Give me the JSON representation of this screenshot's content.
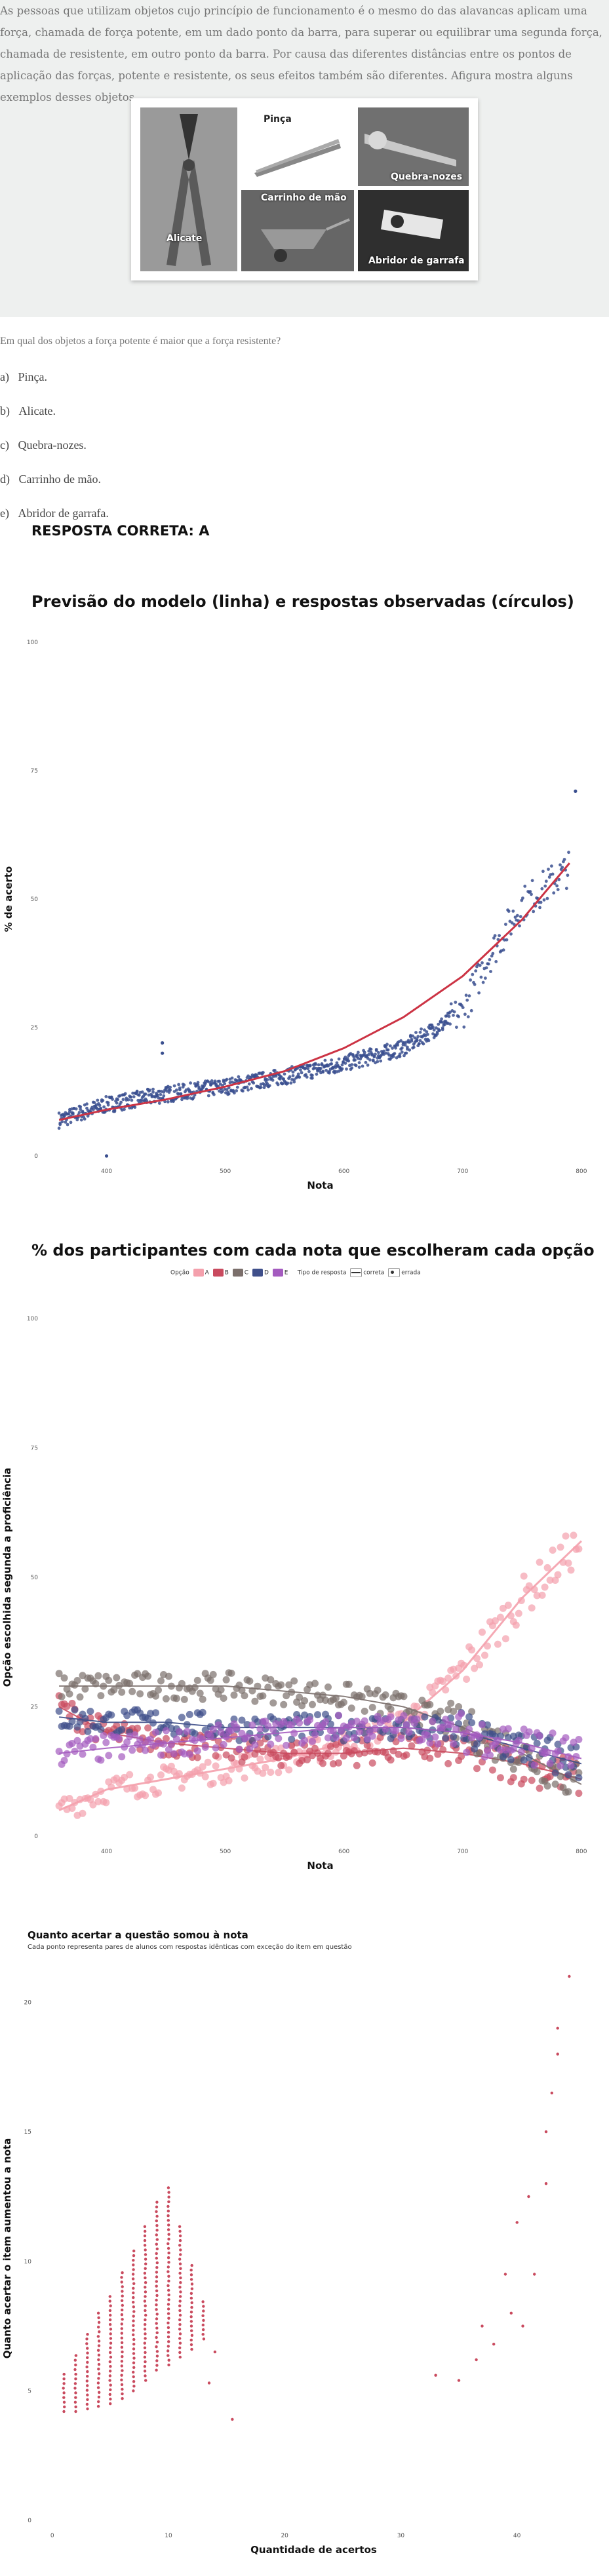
{
  "intro": {
    "text": "As pessoas que utilizam objetos cujo princípio de funcionamento é o mesmo do das alavancas aplicam uma força, chamada de força potente, em um dado ponto da barra, para superar ou equilibrar uma segunda força, chamada de resistente, em outro ponto da barra. Por causa das diferentes distâncias entre os pontos de aplicação das forças, potente e resistente, os seus efeitos também são diferentes. Afigura mostra alguns exemplos desses objetos.",
    "figure": {
      "labels": {
        "alicate": "Alicate",
        "pinca": "Pinça",
        "quebra_nozes": "Quebra-nozes",
        "carrinho": "Carrinho de mão",
        "abridor": "Abridor de garrafa"
      }
    }
  },
  "question": "Em qual dos objetos a força potente é maior que a força resistente?",
  "options": [
    {
      "letter": "a)",
      "text": "Pinça."
    },
    {
      "letter": "b)",
      "text": "Alicate."
    },
    {
      "letter": "c)",
      "text": "Quebra-nozes."
    },
    {
      "letter": "d)",
      "text": "Carrinho de mão."
    },
    {
      "letter": "e)",
      "text": "Abridor de garrafa."
    }
  ],
  "answer": "RESPOSTA CORRETA: A",
  "colors": {
    "model_line": "#cc3344",
    "observed": "#3a4f8f",
    "A": "#f4a0ac",
    "B": "#c94a5e",
    "C": "#7b6f6b",
    "D": "#3f4f8a",
    "E": "#a45bbf"
  },
  "chart_data": [
    {
      "type": "scatter",
      "title": "Previsão do modelo (linha) e respostas observadas (círculos)",
      "xlabel": "Nota",
      "ylabel": "% de acerto",
      "xlim": [
        350,
        810
      ],
      "ylim": [
        0,
        100
      ],
      "xticks": [
        "400",
        "500",
        "600",
        "700",
        "800"
      ],
      "yticks": [
        "0",
        "25",
        "50",
        "75",
        "100"
      ],
      "model_line": {
        "x": [
          360,
          400,
          450,
          500,
          550,
          600,
          650,
          700,
          750,
          790
        ],
        "y": [
          7,
          9,
          11,
          13.5,
          16.5,
          21,
          27,
          35,
          46,
          57
        ]
      },
      "observed_trend": {
        "x": [
          360,
          400,
          450,
          500,
          550,
          600,
          650,
          700,
          720,
          750,
          790
        ],
        "y": [
          7,
          10,
          12,
          13.5,
          15.5,
          18,
          21,
          28,
          38,
          49,
          56
        ]
      },
      "outliers": [
        {
          "x": 400,
          "y": 0
        },
        {
          "x": 447,
          "y": 20
        },
        {
          "x": 447,
          "y": 22
        },
        {
          "x": 795,
          "y": 71
        }
      ]
    },
    {
      "type": "scatter",
      "title": "% dos participantes com cada nota que escolheram cada opção",
      "xlabel": "Nota",
      "ylabel": "Opção escolhida segunda a proficiência",
      "xlim": [
        350,
        810
      ],
      "ylim": [
        0,
        100
      ],
      "xticks": [
        "400",
        "500",
        "600",
        "700",
        "800"
      ],
      "yticks": [
        "0",
        "25",
        "50",
        "75",
        "100"
      ],
      "legend": {
        "option_title": "Opção",
        "options": [
          "A",
          "B",
          "C",
          "D",
          "E"
        ],
        "type_title": "Tipo de resposta",
        "types": [
          "correta",
          "errada"
        ]
      },
      "series": [
        {
          "name": "A",
          "x": [
            360,
            400,
            450,
            500,
            550,
            600,
            650,
            700,
            750,
            800
          ],
          "y": [
            5,
            9,
            11,
            13,
            15,
            18,
            22,
            32,
            46,
            57
          ]
        },
        {
          "name": "B",
          "x": [
            360,
            400,
            450,
            500,
            550,
            600,
            650,
            700,
            750,
            800
          ],
          "y": [
            25,
            20,
            18,
            17,
            16,
            16,
            17,
            16,
            14,
            11
          ]
        },
        {
          "name": "C",
          "x": [
            360,
            400,
            450,
            500,
            550,
            600,
            650,
            700,
            750,
            800
          ],
          "y": [
            29,
            29,
            29,
            29,
            28,
            27,
            25,
            21,
            16,
            10
          ]
        },
        {
          "name": "D",
          "x": [
            360,
            400,
            450,
            500,
            550,
            600,
            650,
            700,
            750,
            800
          ],
          "y": [
            23,
            22,
            22,
            21,
            21,
            21,
            21,
            20,
            17,
            14
          ]
        },
        {
          "name": "E",
          "x": [
            360,
            400,
            450,
            500,
            550,
            600,
            650,
            700,
            750,
            800
          ],
          "y": [
            16,
            17,
            18,
            19,
            20,
            21,
            21,
            20,
            18,
            15
          ]
        }
      ]
    },
    {
      "type": "scatter",
      "title": "Quanto acertar a questão somou à nota",
      "subtitle": "Cada ponto representa pares de alunos com respostas idênticas com exceção do item em questão",
      "xlabel": "Quantidade de acertos",
      "ylabel": "Quanto acertar o item aumentou a nota",
      "xlim": [
        -1,
        46
      ],
      "ylim": [
        0,
        21
      ],
      "xticks": [
        "0",
        "10",
        "20",
        "30",
        "40"
      ],
      "yticks": [
        "0",
        "5",
        "10",
        "15",
        "20"
      ],
      "columns": [
        {
          "x": 1,
          "min": 4.2,
          "max": 5.8
        },
        {
          "x": 2,
          "min": 4.2,
          "max": 6.5
        },
        {
          "x": 3,
          "min": 4.3,
          "max": 7.2
        },
        {
          "x": 4,
          "min": 4.4,
          "max": 8.0
        },
        {
          "x": 5,
          "min": 4.5,
          "max": 8.8
        },
        {
          "x": 6,
          "min": 4.7,
          "max": 9.6
        },
        {
          "x": 7,
          "min": 5.0,
          "max": 10.4
        },
        {
          "x": 8,
          "min": 5.4,
          "max": 11.4
        },
        {
          "x": 9,
          "min": 5.8,
          "max": 12.3
        },
        {
          "x": 10,
          "min": 6.0,
          "max": 13.0
        },
        {
          "x": 11,
          "min": 6.3,
          "max": 11.5
        },
        {
          "x": 12,
          "min": 6.6,
          "max": 10.0
        },
        {
          "x": 13,
          "min": 7.0,
          "max": 8.5
        }
      ],
      "scattered": [
        {
          "x": 14,
          "y": 6.5
        },
        {
          "x": 13.5,
          "y": 5.3
        },
        {
          "x": 15.5,
          "y": 3.9
        },
        {
          "x": 33,
          "y": 5.6
        },
        {
          "x": 35,
          "y": 5.4
        },
        {
          "x": 36.5,
          "y": 6.2
        },
        {
          "x": 37,
          "y": 7.5
        },
        {
          "x": 38,
          "y": 6.8
        },
        {
          "x": 39,
          "y": 9.5
        },
        {
          "x": 39.5,
          "y": 8.0
        },
        {
          "x": 40,
          "y": 11.5
        },
        {
          "x": 40.5,
          "y": 7.5
        },
        {
          "x": 41,
          "y": 12.5
        },
        {
          "x": 41.5,
          "y": 9.5
        },
        {
          "x": 42.5,
          "y": 13.0
        },
        {
          "x": 42.5,
          "y": 15.0
        },
        {
          "x": 43,
          "y": 16.5
        },
        {
          "x": 43.5,
          "y": 18.0
        },
        {
          "x": 43.5,
          "y": 19.0
        },
        {
          "x": 44.5,
          "y": 21.0
        }
      ]
    }
  ]
}
